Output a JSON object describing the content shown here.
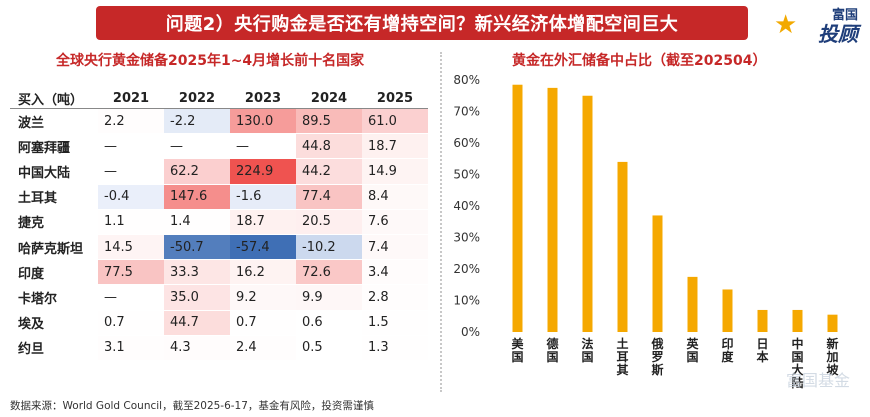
{
  "header": {
    "title": "问题2）央行购金是否还有增持空间？新兴经济体增配空间巨大",
    "logo_top": "富国",
    "logo_main": "投顾"
  },
  "table": {
    "title": "全球央行黄金储备2025年1~4月增长前十名国家",
    "corner_label": "买入（吨）",
    "years": [
      "2021",
      "2022",
      "2023",
      "2024",
      "2025"
    ],
    "rows": [
      {
        "country": "波兰",
        "values": [
          "2.2",
          "-2.2",
          "130.0",
          "89.5",
          "61.0"
        ]
      },
      {
        "country": "阿塞拜疆",
        "values": [
          "—",
          "—",
          "—",
          "44.8",
          "18.7"
        ]
      },
      {
        "country": "中国大陆",
        "values": [
          "—",
          "62.2",
          "224.9",
          "44.2",
          "14.9"
        ]
      },
      {
        "country": "土耳其",
        "values": [
          "-0.4",
          "147.6",
          "-1.6",
          "77.4",
          "8.4"
        ]
      },
      {
        "country": "捷克",
        "values": [
          "1.1",
          "1.4",
          "18.7",
          "20.5",
          "7.6"
        ]
      },
      {
        "country": "哈萨克斯坦",
        "values": [
          "14.5",
          "-50.7",
          "-57.4",
          "-10.2",
          "7.4"
        ]
      },
      {
        "country": "印度",
        "values": [
          "77.5",
          "33.3",
          "16.2",
          "72.6",
          "3.4"
        ]
      },
      {
        "country": "卡塔尔",
        "values": [
          "—",
          "35.0",
          "9.2",
          "9.9",
          "2.8"
        ]
      },
      {
        "country": "埃及",
        "values": [
          "0.7",
          "44.7",
          "0.7",
          "0.6",
          "1.5"
        ]
      },
      {
        "country": "约旦",
        "values": [
          "3.1",
          "4.3",
          "2.4",
          "0.5",
          "1.3"
        ]
      }
    ]
  },
  "chart_data": {
    "type": "bar",
    "title": "黄金在外汇储备中占比（截至202504）",
    "categories": [
      "美国",
      "德国",
      "法国",
      "土耳其",
      "俄罗斯",
      "英国",
      "印度",
      "日本",
      "中国大陆",
      "新加坡"
    ],
    "values": [
      78.5,
      77.5,
      75.0,
      54.0,
      37.0,
      17.5,
      13.5,
      7.0,
      7.0,
      5.5
    ],
    "ylim": [
      0,
      80
    ],
    "yticks": [
      "0%",
      "10%",
      "20%",
      "30%",
      "40%",
      "50%",
      "60%",
      "70%",
      "80%"
    ],
    "bar_color": "#f5a800",
    "grid": false
  },
  "footer": {
    "source": "数据来源：World Gold Council，截至2025-6-17，基金有风险，投资需谨慎",
    "watermark": "富国基金"
  },
  "colors": {
    "title_bg": "#c62828",
    "accent_red": "#c62828",
    "pos_max": "#ef5350",
    "neg_max": "#3f6fb5"
  }
}
